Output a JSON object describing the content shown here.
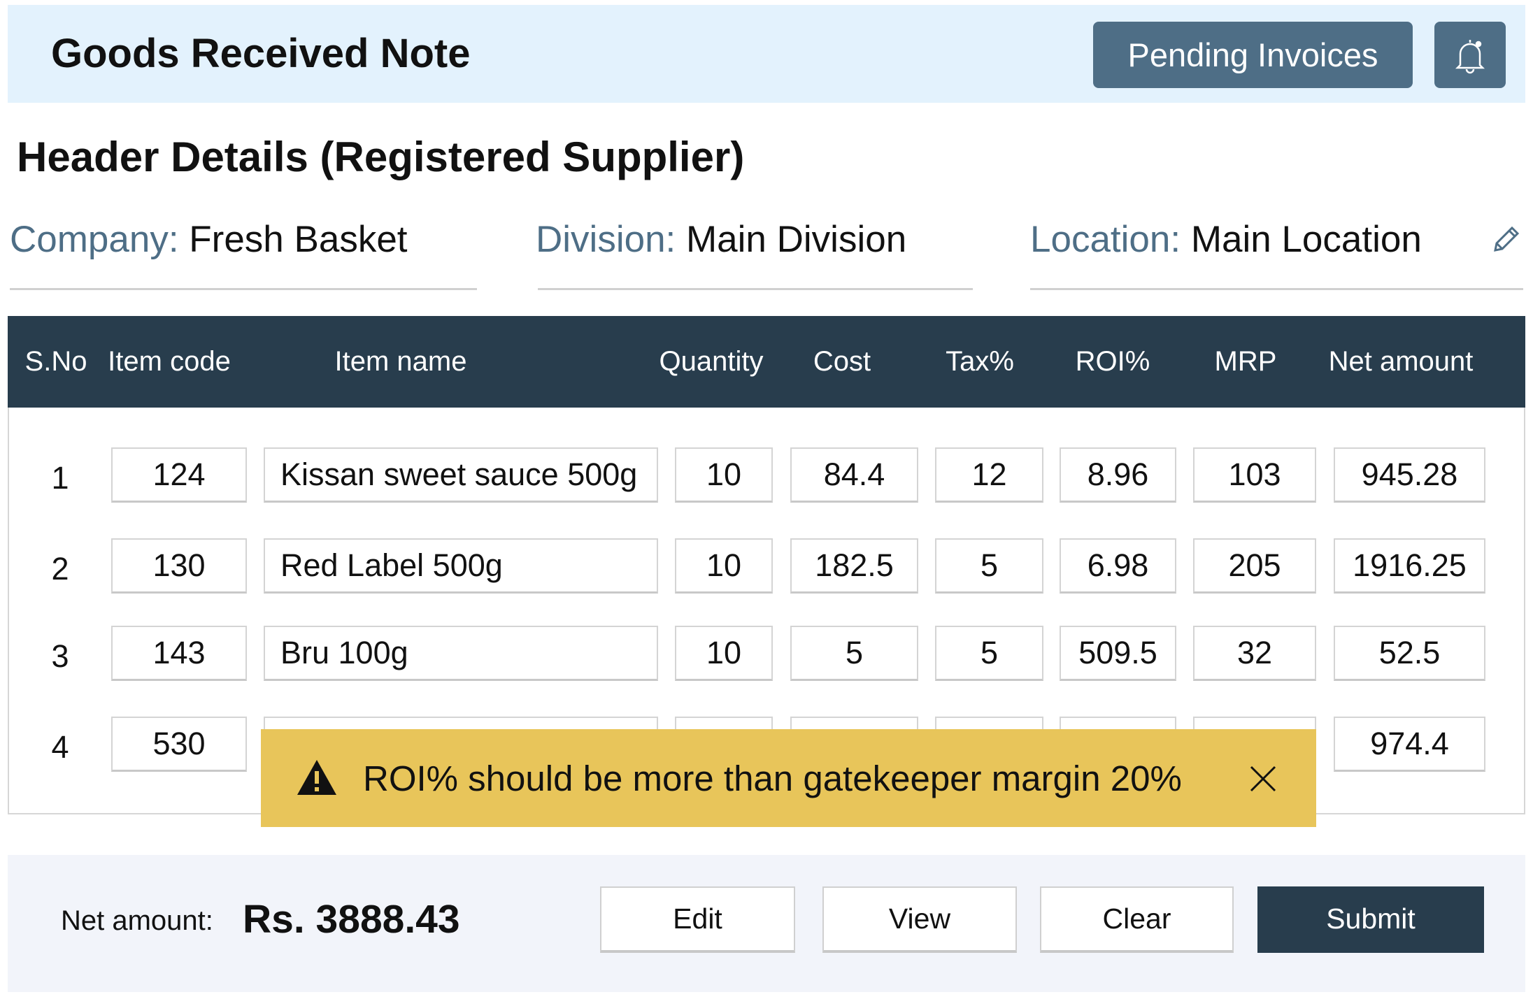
{
  "app": {
    "title": "Goods Received Note",
    "pending_invoices_label": "Pending Invoices",
    "bell_icon": "bell-icon"
  },
  "header": {
    "section_title": "Header Details (Registered Supplier)",
    "company": {
      "label": "Company:",
      "value": "Fresh Basket"
    },
    "division": {
      "label": "Division:",
      "value": "Main Division"
    },
    "location": {
      "label": "Location:",
      "value": "Main Location"
    },
    "edit_icon": "pencil-icon"
  },
  "table": {
    "columns": [
      "S.No",
      "Item code",
      "Item name",
      "Quantity",
      "Cost",
      "Tax%",
      "ROI%",
      "MRP",
      "Net amount"
    ],
    "rows": [
      {
        "sno": "1",
        "code": "124",
        "name": "Kissan sweet sauce 500g",
        "qty": "10",
        "cost": "84.4",
        "tax": "12",
        "roi": "8.96",
        "mrp": "103",
        "net": "945.28"
      },
      {
        "sno": "2",
        "code": "130",
        "name": "Red Label 500g",
        "qty": "10",
        "cost": "182.5",
        "tax": "5",
        "roi": "6.98",
        "mrp": "205",
        "net": "1916.25"
      },
      {
        "sno": "3",
        "code": "143",
        "name": "Bru 100g",
        "qty": "10",
        "cost": "5",
        "tax": "5",
        "roi": "509.5",
        "mrp": "32",
        "net": "52.5"
      },
      {
        "sno": "4",
        "code": "530",
        "name": "",
        "qty": "",
        "cost": "",
        "tax": "",
        "roi": "",
        "mrp": "",
        "net": "974.4"
      }
    ]
  },
  "toast": {
    "message": "ROI% should be more than gatekeeper margin 20%",
    "icon": "warning-icon",
    "color": "#e8c55a"
  },
  "footer": {
    "net_amount_label": "Net amount:",
    "net_amount_value": "Rs. 3888.43",
    "buttons": {
      "edit": "Edit",
      "view": "View",
      "clear": "Clear",
      "submit": "Submit"
    }
  },
  "colors": {
    "topbar": "#e3f2fd",
    "accent": "#4e6e86",
    "table_header": "#283d4d",
    "footer": "#f2f4fa"
  }
}
